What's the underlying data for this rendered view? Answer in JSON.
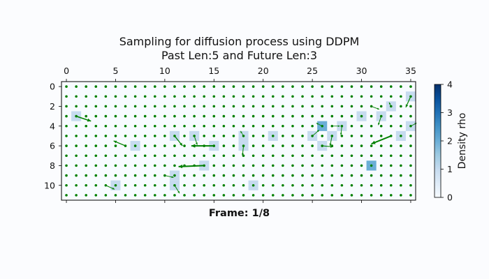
{
  "chart_data": {
    "type": "heatmap",
    "title": "Sampling for diffusion process using DDPM",
    "subtitle": "Past Len:5 and Future Len:3",
    "footer": "Frame: 1/8",
    "x_ticks": [
      0,
      5,
      10,
      15,
      20,
      25,
      30,
      35
    ],
    "y_ticks": [
      0,
      2,
      4,
      6,
      8,
      10
    ],
    "xlim": [
      -0.5,
      35.5
    ],
    "ylim": [
      11.5,
      -0.5
    ],
    "grid_cols": 36,
    "grid_rows": 12,
    "colorbar": {
      "label": "Density rho",
      "min": 0,
      "max": 4,
      "ticks": [
        0,
        1,
        2,
        3,
        4
      ],
      "cmap": "Blues"
    },
    "colors": {
      "dots": "#008000",
      "arrows": "#008000",
      "cmap_low": "#f7fbff",
      "cmap_high": "#08306b"
    },
    "density_cells": [
      {
        "x": 35,
        "y": 1,
        "v": 1
      },
      {
        "x": 33,
        "y": 2,
        "v": 1
      },
      {
        "x": 1,
        "y": 3,
        "v": 1
      },
      {
        "x": 30,
        "y": 3,
        "v": 1
      },
      {
        "x": 32,
        "y": 3,
        "v": 1
      },
      {
        "x": 26,
        "y": 4,
        "v": 2
      },
      {
        "x": 28,
        "y": 4,
        "v": 1
      },
      {
        "x": 35,
        "y": 4,
        "v": 1
      },
      {
        "x": 11,
        "y": 5,
        "v": 1
      },
      {
        "x": 13,
        "y": 5,
        "v": 1
      },
      {
        "x": 18,
        "y": 5,
        "v": 1
      },
      {
        "x": 21,
        "y": 5,
        "v": 1
      },
      {
        "x": 25,
        "y": 5,
        "v": 1
      },
      {
        "x": 27,
        "y": 5,
        "v": 1
      },
      {
        "x": 34,
        "y": 5,
        "v": 1
      },
      {
        "x": 7,
        "y": 6,
        "v": 1
      },
      {
        "x": 15,
        "y": 6,
        "v": 1
      },
      {
        "x": 18,
        "y": 6,
        "v": 1
      },
      {
        "x": 26,
        "y": 6,
        "v": 1
      },
      {
        "x": 14,
        "y": 8,
        "v": 1
      },
      {
        "x": 31,
        "y": 8,
        "v": 2
      },
      {
        "x": 11,
        "y": 9,
        "v": 1
      },
      {
        "x": 5,
        "y": 10,
        "v": 1
      },
      {
        "x": 11,
        "y": 10,
        "v": 1
      },
      {
        "x": 19,
        "y": 10,
        "v": 1
      }
    ],
    "arrows": [
      {
        "x": 1,
        "y": 3,
        "u": 1.5,
        "v": 0.5
      },
      {
        "x": 6,
        "y": 6,
        "u": -1.2,
        "v": -0.5
      },
      {
        "x": 11,
        "y": 5,
        "u": 0.8,
        "v": 1.0
      },
      {
        "x": 13,
        "y": 5,
        "u": 0.3,
        "v": 0.9
      },
      {
        "x": 15,
        "y": 6,
        "u": -2.3,
        "v": 0.0
      },
      {
        "x": 14,
        "y": 8,
        "u": -2.6,
        "v": 0.1
      },
      {
        "x": 10,
        "y": 9,
        "u": 0.9,
        "v": 0.2
      },
      {
        "x": 11,
        "y": 10,
        "u": 0.5,
        "v": 0.8
      },
      {
        "x": 4,
        "y": 10,
        "u": 0.9,
        "v": 0.4
      },
      {
        "x": 18,
        "y": 5,
        "u": -0.3,
        "v": -0.5
      },
      {
        "x": 18,
        "y": 6,
        "u": -0.1,
        "v": 1.0
      },
      {
        "x": 25,
        "y": 5,
        "u": 0.7,
        "v": -0.6
      },
      {
        "x": 26,
        "y": 4,
        "u": -0.6,
        "v": -0.3
      },
      {
        "x": 27,
        "y": 4,
        "u": 0.8,
        "v": 0.0
      },
      {
        "x": 26,
        "y": 6,
        "u": 1.1,
        "v": 0.1
      },
      {
        "x": 27,
        "y": 5,
        "u": -0.2,
        "v": 1.0
      },
      {
        "x": 28,
        "y": 4,
        "u": -0.1,
        "v": 0.9
      },
      {
        "x": 32,
        "y": 3,
        "u": -0.3,
        "v": 0.9
      },
      {
        "x": 31,
        "y": 2,
        "u": 0.8,
        "v": 0.3
      },
      {
        "x": 33,
        "y": 5,
        "u": -2.0,
        "v": 0.8
      },
      {
        "x": 33,
        "y": 2,
        "u": -0.2,
        "v": -0.4
      },
      {
        "x": 35,
        "y": 1,
        "u": -0.5,
        "v": 1.1
      },
      {
        "x": 35,
        "y": 4,
        "u": 0.6,
        "v": -0.3
      }
    ]
  }
}
